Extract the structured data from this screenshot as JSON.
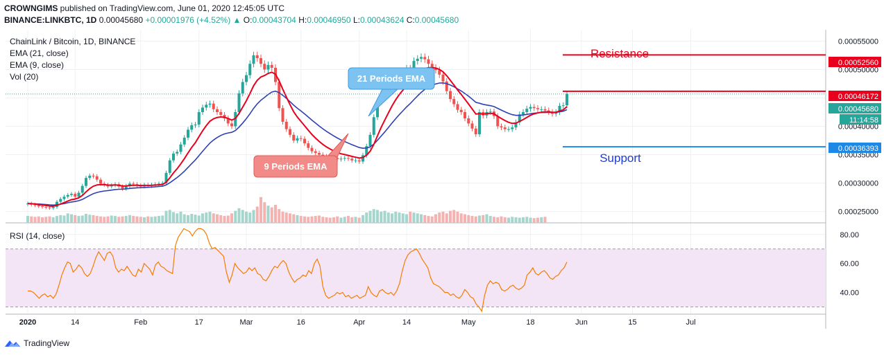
{
  "header": {
    "author": "CROWNGIMS",
    "published_text": " published on TradingView.com, June 01, 2020 12:45:05 UTC",
    "symbol": "BINANCE:LINKBTC, 1D",
    "last_price": "0.00045680",
    "change": "+0.00001976 (+4.52%)",
    "open_label": "O:",
    "open_value": "0.00043704",
    "high_label": "H:",
    "high_value": "0.00046950",
    "low_label": "L:",
    "low_value": "0.00043624",
    "close_label": "C:",
    "close_value": "0.00045680"
  },
  "legend": {
    "title": "ChainLink / Bitcoin, 1D, BINANCE",
    "ema21": "EMA (21, close)",
    "ema9": "EMA (9, close)",
    "vol": "Vol (20)"
  },
  "rsi_legend": "RSI (14, close)",
  "colors": {
    "up": "#26a69a",
    "down": "#ef5350",
    "ema21": "#2e3fb4",
    "ema9": "#e8001c",
    "resistance": "#e8001c",
    "support": "#1e88e5",
    "rsi_line": "#f57c00",
    "rsi_band": "#f3e5f5"
  },
  "annotations": {
    "resistance": "Resistance",
    "support": "Support",
    "ema21_callout": "21 Periods EMA",
    "ema9_callout": "9 Periods EMA"
  },
  "price_labels": {
    "resistance_top": "0.00052560",
    "resistance_near": "0.00046172",
    "last": "0.00045680",
    "countdown": "11:14:58",
    "support": "0.00036393"
  },
  "footer": {
    "brand": "TradingView"
  },
  "chart_data": [
    {
      "type": "candlestick",
      "title": "ChainLink / Bitcoin, 1D, BINANCE",
      "ylim": [
        0.00023,
        0.00057
      ],
      "y_ticks": [
        "0.00055000",
        "0.00050000",
        "0.00045000",
        "0.00040000",
        "0.00035000",
        "0.00030000",
        "0.00025000"
      ],
      "x_ticks": [
        "2020",
        "14",
        "Feb",
        "17",
        "Mar",
        "16",
        "Apr",
        "14",
        "May",
        "18",
        "Jun",
        "15",
        "Jul"
      ],
      "x_ticks_day": [
        0,
        13,
        31,
        47,
        60,
        75,
        91,
        104,
        121,
        138,
        152,
        166,
        182
      ],
      "closes": [
        0.000264,
        0.000262,
        0.000261,
        0.000259,
        0.000258,
        0.000257,
        0.000256,
        0.000258,
        0.000267,
        0.000272,
        0.000276,
        0.000279,
        0.000281,
        0.000276,
        0.000283,
        0.000295,
        0.000309,
        0.000313,
        0.000312,
        0.000306,
        0.000299,
        0.000297,
        0.000294,
        0.000296,
        0.000298,
        0.000294,
        0.00029,
        0.000295,
        0.000299,
        0.000298,
        0.000296,
        0.000294,
        0.000297,
        0.000295,
        0.000297,
        0.000298,
        0.000299,
        0.0003,
        0.000318,
        0.00034,
        0.000352,
        0.000355,
        0.000368,
        0.00038,
        0.000394,
        0.000402,
        0.000403,
        0.000425,
        0.000433,
        0.000438,
        0.00044,
        0.00043,
        0.000425,
        0.00042,
        0.000414,
        0.000405,
        0.0004,
        0.000425,
        0.000458,
        0.000478,
        0.00049,
        0.00051,
        0.000525,
        0.00052,
        0.00051,
        0.0005,
        0.000508,
        0.000503,
        0.000478,
        0.000432,
        0.000408,
        0.000395,
        0.000385,
        0.000375,
        0.000379,
        0.000378,
        0.00037,
        0.000362,
        0.000356,
        0.000353,
        0.00035,
        0.000347,
        0.000346,
        0.000345,
        0.000344,
        0.000342,
        0.000343,
        0.000344,
        0.000343,
        0.00034,
        0.00034,
        0.000338,
        0.000349,
        0.000365,
        0.000385,
        0.000416,
        0.000444,
        0.000457,
        0.000462,
        0.000475,
        0.000485,
        0.00049,
        0.000493,
        0.000495,
        0.000502,
        0.0005,
        0.000515,
        0.000519,
        0.000522,
        0.000518,
        0.00051,
        0.000503,
        0.000499,
        0.000491,
        0.000479,
        0.000462,
        0.000448,
        0.000439,
        0.000429,
        0.000425,
        0.000414,
        0.000405,
        0.000396,
        0.000386,
        0.000425,
        0.000419,
        0.000425,
        0.000426,
        0.000418,
        0.0004,
        0.000398,
        0.000395,
        0.000395,
        0.000398,
        0.000407,
        0.000421,
        0.000425,
        0.000431,
        0.000434,
        0.000432,
        0.00043,
        0.00043,
        0.000428,
        0.000425,
        0.000422,
        0.000425,
        0.000436,
        0.000437,
        0.000457
      ],
      "ema9_last": 0.000437,
      "ema21_last": 0.000428,
      "levels": {
        "resistance": [
          0.0005256,
          0.00046172
        ],
        "support": 0.00036393,
        "last": 0.0004568
      }
    },
    {
      "type": "line",
      "title": "RSI (14, close)",
      "ylim": [
        25,
        88
      ],
      "y_ticks": [
        "80.00",
        "60.00",
        "40.00"
      ],
      "band": [
        30,
        70
      ],
      "values": [
        41,
        41,
        40,
        38,
        36,
        38,
        39,
        37,
        38,
        36,
        39,
        45,
        52,
        57,
        61,
        60,
        54,
        56,
        59,
        57,
        53,
        51,
        53,
        58,
        64,
        68,
        65,
        62,
        67,
        68,
        65,
        57,
        54,
        56,
        55,
        58,
        55,
        52,
        51,
        56,
        54,
        60,
        58,
        56,
        52,
        59,
        61,
        58,
        57,
        55,
        54,
        53,
        72,
        78,
        81,
        84,
        83,
        82,
        79,
        82,
        84,
        84,
        83,
        80,
        74,
        70,
        71,
        69,
        67,
        65,
        54,
        47,
        52,
        60,
        57,
        55,
        53,
        54,
        57,
        55,
        57,
        53,
        52,
        49,
        48,
        51,
        55,
        58,
        57,
        60,
        62,
        60,
        54,
        50,
        47,
        49,
        50,
        52,
        51,
        55,
        53,
        60,
        63,
        58,
        44,
        38,
        36,
        37,
        38,
        40,
        39,
        40,
        37,
        38,
        36,
        37,
        38,
        36,
        37,
        38,
        44,
        40,
        38,
        37,
        41,
        42,
        40,
        39,
        40,
        38,
        41,
        46,
        55,
        62,
        66,
        68,
        69,
        70,
        67,
        63,
        60,
        57,
        50,
        46,
        45,
        44,
        42,
        40,
        40,
        38,
        39,
        37,
        36,
        38,
        42,
        40,
        37,
        36,
        32,
        30,
        27,
        38,
        45,
        48,
        46,
        47,
        46,
        42,
        41,
        42,
        44,
        45,
        43,
        42,
        43,
        45,
        52,
        54,
        57,
        53,
        52,
        54,
        55,
        53,
        50,
        49,
        51,
        52,
        55,
        57,
        61
      ]
    },
    {
      "type": "bar",
      "title": "Vol (20)",
      "values": [
        16,
        15,
        14,
        15,
        13,
        14,
        15,
        13,
        16,
        18,
        17,
        22,
        20,
        18,
        16,
        17,
        21,
        19,
        18,
        16,
        15,
        14,
        15,
        17,
        16,
        14,
        15,
        16,
        18,
        16,
        15,
        14,
        13,
        15,
        14,
        15,
        16,
        17,
        28,
        30,
        25,
        22,
        26,
        20,
        18,
        21,
        19,
        17,
        22,
        24,
        26,
        22,
        20,
        18,
        16,
        17,
        22,
        28,
        34,
        30,
        26,
        24,
        30,
        38,
        60,
        48,
        40,
        36,
        42,
        32,
        26,
        24,
        22,
        20,
        18,
        16,
        15,
        14,
        15,
        16,
        17,
        14,
        13,
        12,
        13,
        15,
        12,
        14,
        16,
        13,
        14,
        12,
        18,
        24,
        28,
        32,
        30,
        26,
        28,
        24,
        22,
        26,
        24,
        22,
        20,
        26,
        24,
        22,
        20,
        18,
        16,
        15,
        20,
        24,
        26,
        22,
        28,
        30,
        26,
        22,
        20,
        18,
        16,
        15,
        17,
        18,
        20,
        16,
        14,
        13,
        15,
        13,
        12,
        14,
        13,
        12,
        13,
        14,
        12,
        11,
        12,
        13,
        14
      ]
    }
  ]
}
